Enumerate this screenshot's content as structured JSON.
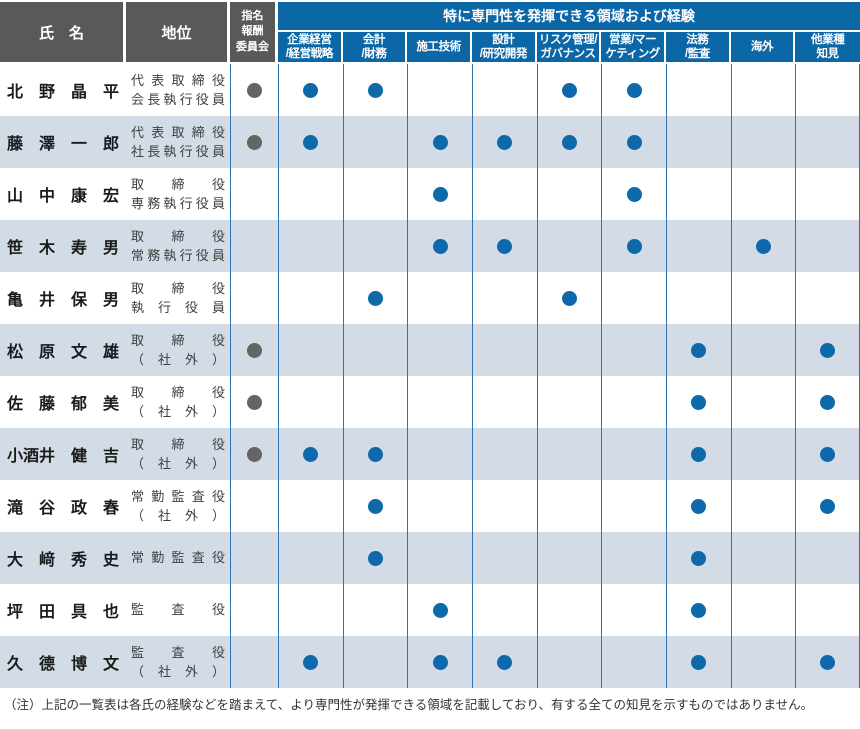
{
  "header": {
    "name": "氏　名",
    "position": "地位",
    "committee": "指名\n報酬\n委員会",
    "expertise_title": "特に専門性を発揮できる領域および経験",
    "expertise_columns": [
      "企業経営\n/経営戦略",
      "会計\n/財務",
      "施工技術",
      "設計\n/研究開発",
      "リスク管理/\nガバナンス",
      "営業/マー\nケティング",
      "法務\n/監査",
      "海外",
      "他業種\n知見"
    ]
  },
  "rows": [
    {
      "name": "北　野　晶　平",
      "position": "代表取締役\n会長執行役員",
      "committee": true,
      "skills": [
        1,
        1,
        0,
        0,
        1,
        1,
        0,
        0,
        0
      ]
    },
    {
      "name": "藤　澤　一　郎",
      "position": "代表取締役\n社長執行役員",
      "committee": true,
      "skills": [
        1,
        0,
        1,
        1,
        1,
        1,
        0,
        0,
        0
      ]
    },
    {
      "name": "山　中　康　宏",
      "position": "取締役\n専務執行役員",
      "committee": false,
      "skills": [
        0,
        0,
        1,
        0,
        0,
        1,
        0,
        0,
        0
      ]
    },
    {
      "name": "笹　木　寿　男",
      "position": "取締役\n常務執行役員",
      "committee": false,
      "skills": [
        0,
        0,
        1,
        1,
        0,
        1,
        0,
        1,
        0
      ]
    },
    {
      "name": "亀　井　保　男",
      "position": "取締役\n執行役員",
      "committee": false,
      "skills": [
        0,
        1,
        0,
        0,
        1,
        0,
        0,
        0,
        0
      ]
    },
    {
      "name": "松　原　文　雄",
      "position": "取締役\n（社外）",
      "committee": true,
      "skills": [
        0,
        0,
        0,
        0,
        0,
        0,
        1,
        0,
        1
      ]
    },
    {
      "name": "佐　藤　郁　美",
      "position": "取締役\n（社外）",
      "committee": true,
      "skills": [
        0,
        0,
        0,
        0,
        0,
        0,
        1,
        0,
        1
      ]
    },
    {
      "name": "小酒井　健　吉",
      "position": "取締役\n（社外）",
      "committee": true,
      "skills": [
        1,
        1,
        0,
        0,
        0,
        0,
        1,
        0,
        1
      ]
    },
    {
      "name": "滝　谷　政　春",
      "position": "常勤監査役\n（社外）",
      "committee": false,
      "skills": [
        0,
        1,
        0,
        0,
        0,
        0,
        1,
        0,
        1
      ]
    },
    {
      "name": "大　﨑　秀　史",
      "position": "常勤監査役",
      "committee": false,
      "skills": [
        0,
        1,
        0,
        0,
        0,
        0,
        1,
        0,
        0
      ]
    },
    {
      "name": "坪　田　具　也",
      "position": "監査役",
      "committee": false,
      "skills": [
        0,
        0,
        1,
        0,
        0,
        0,
        1,
        0,
        0
      ]
    },
    {
      "name": "久　德　博　文",
      "position": "監査役\n（社外）",
      "committee": false,
      "skills": [
        1,
        0,
        1,
        1,
        0,
        0,
        1,
        0,
        1
      ]
    }
  ],
  "footnote": "（注）上記の一覧表は各氏の経験などを踏まえて、より専門性が発揮できる領域を記載しており、有する全ての知見を示すものではありません。",
  "colors": {
    "header_gray": "#595959",
    "header_blue": "#0c67a7",
    "row_stripe": "#d2dbe6",
    "grid_line": "#2f74ad",
    "dot_blue": "#0e69aa",
    "dot_gray": "#646464"
  }
}
